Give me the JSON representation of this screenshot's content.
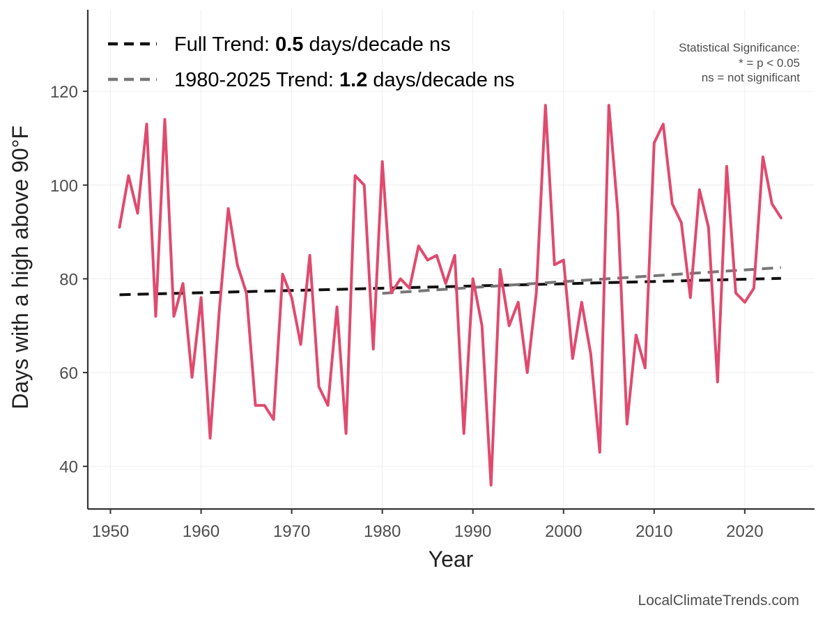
{
  "chart_data": {
    "type": "line",
    "title": "",
    "xlabel": "Year",
    "ylabel": "Days with a high above 90°F",
    "xlim": [
      1947.5,
      2027.7
    ],
    "ylim": [
      30.9,
      137.4
    ],
    "x_ticks": [
      1950,
      1960,
      1970,
      1980,
      1990,
      2000,
      2010,
      2020
    ],
    "y_ticks": [
      40,
      60,
      80,
      100,
      120
    ],
    "grid": true,
    "series": [
      {
        "name": "Days above 90°F",
        "color": "#e04a6e",
        "x": [
          1951,
          1952,
          1953,
          1954,
          1955,
          1956,
          1957,
          1958,
          1959,
          1960,
          1961,
          1962,
          1963,
          1964,
          1965,
          1966,
          1967,
          1968,
          1969,
          1970,
          1971,
          1972,
          1973,
          1974,
          1975,
          1976,
          1977,
          1978,
          1979,
          1980,
          1981,
          1982,
          1983,
          1984,
          1985,
          1986,
          1987,
          1988,
          1989,
          1990,
          1991,
          1992,
          1993,
          1994,
          1995,
          1996,
          1997,
          1998,
          1999,
          2000,
          2001,
          2002,
          2003,
          2004,
          2005,
          2006,
          2007,
          2008,
          2009,
          2010,
          2011,
          2012,
          2013,
          2014,
          2015,
          2016,
          2017,
          2018,
          2019,
          2020,
          2021,
          2022,
          2023,
          2024
        ],
        "values": [
          91,
          102,
          94,
          113,
          72,
          114,
          72,
          79,
          59,
          76,
          46,
          73,
          95,
          83,
          77,
          53,
          53,
          50,
          81,
          76,
          66,
          85,
          57,
          53,
          74,
          47,
          102,
          100,
          65,
          105,
          77,
          80,
          78,
          87,
          84,
          85,
          79,
          85,
          47,
          80,
          70,
          36,
          82,
          70,
          75,
          60,
          77,
          117,
          83,
          84,
          63,
          75,
          64,
          43,
          117,
          94,
          49,
          68,
          61,
          109,
          113,
          96,
          92,
          76,
          99,
          91,
          58,
          104,
          77,
          75,
          78,
          106,
          96,
          93
        ]
      }
    ],
    "trends": [
      {
        "name": "Full Trend",
        "color": "#111111",
        "x": [
          1951,
          2024
        ],
        "values": [
          76.6,
          80.1
        ]
      },
      {
        "name": "1980-2025 Trend",
        "color": "#777777",
        "x": [
          1980,
          2024
        ],
        "values": [
          76.9,
          82.4
        ]
      }
    ],
    "legend": {
      "placement": "top-left",
      "entries": [
        {
          "label_pre": "Full Trend: ",
          "value": "0.5",
          "label_post": " days/decade ns",
          "color": "#111111"
        },
        {
          "label_pre": "1980-2025 Trend: ",
          "value": "1.2",
          "label_post": " days/decade ns",
          "color": "#777777"
        }
      ]
    },
    "annotation": {
      "lines": [
        "Statistical Significance:",
        "* = p < 0.05",
        "ns = not significant"
      ],
      "placement": "top-right"
    },
    "credit": "LocalClimateTrends.com"
  }
}
